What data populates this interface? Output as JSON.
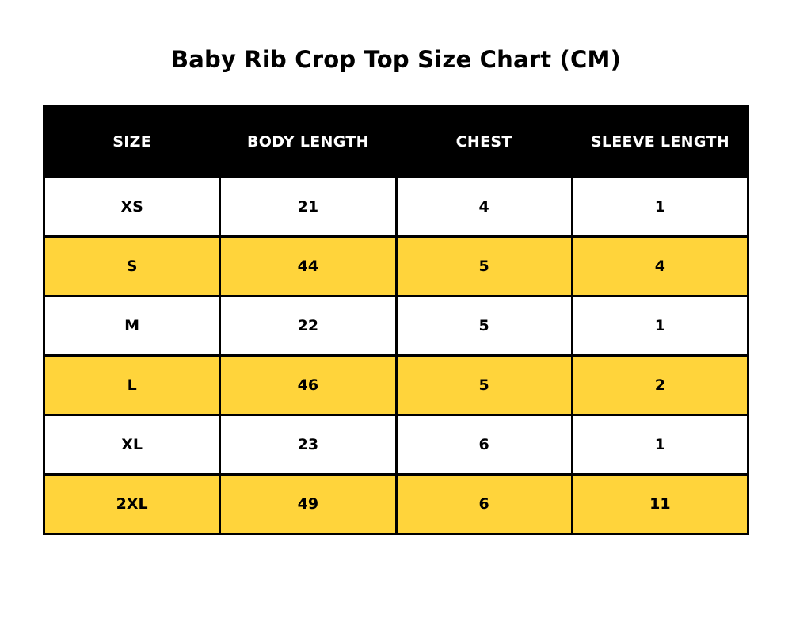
{
  "title": "Baby Rib Crop Top Size Chart (CM)",
  "colors": {
    "header_background": "#000000",
    "header_text": "#ffffff",
    "row_plain": "#ffffff",
    "row_highlight": "#FFD43B"
  },
  "chart_data": {
    "type": "table",
    "title": "Baby Rib Crop Top Size Chart (CM)",
    "columns": [
      "SIZE",
      "BODY LENGTH",
      "CHEST",
      "SLEEVE LENGTH"
    ],
    "rows": [
      [
        "XS",
        "21",
        "4",
        "1"
      ],
      [
        "S",
        "44",
        "5",
        "4"
      ],
      [
        "M",
        "22",
        "5",
        "1"
      ],
      [
        "L",
        "46",
        "5",
        "2"
      ],
      [
        "XL",
        "23",
        "6",
        "1"
      ],
      [
        "2XL",
        "49",
        "6",
        "11"
      ]
    ]
  }
}
